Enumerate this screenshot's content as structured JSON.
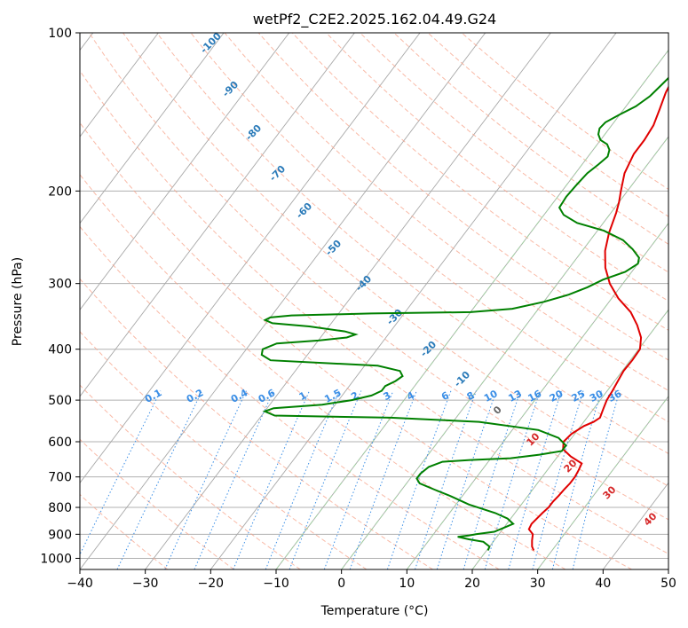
{
  "chart_data": {
    "type": "line",
    "title": "wetPf2_C2E2.2025.162.04.49.G24",
    "xlabel": "Temperature (°C)",
    "ylabel": "Pressure (hPa)",
    "xlim": [
      -40,
      50
    ],
    "ylim": [
      1050,
      100
    ],
    "y_scale": "log",
    "grid": true,
    "x_ticks": [
      -40,
      -30,
      -20,
      -10,
      0,
      10,
      20,
      30,
      40,
      50
    ],
    "y_ticks": [
      1000,
      900,
      800,
      700,
      600,
      500,
      400,
      300,
      200,
      100
    ],
    "colors": {
      "temperature": "#e00000",
      "dewpoint": "#008000",
      "isobar": "#b0b0b0",
      "isotherm": "#a8a8a8",
      "dry_adiabat": "#f7a38a",
      "moist_adiabat": "#9fd49f",
      "mixing_ratio": "#3a8ee6",
      "wetbulb_label": "#2b7bb9",
      "adiabat_label": "#d62728",
      "extra_curve": "#d8b88a"
    },
    "series": [
      {
        "name": "",
        "role": "temperature",
        "points": [
          [
            27.2,
            966
          ],
          [
            26.5,
            950
          ],
          [
            25.8,
            925
          ],
          [
            25.2,
            900
          ],
          [
            24.0,
            880
          ],
          [
            23.8,
            860
          ],
          [
            24.0,
            840
          ],
          [
            24.2,
            820
          ],
          [
            24.5,
            800
          ],
          [
            24.5,
            780
          ],
          [
            24.7,
            760
          ],
          [
            24.8,
            740
          ],
          [
            25.0,
            720
          ],
          [
            25.0,
            700
          ],
          [
            24.8,
            680
          ],
          [
            24.5,
            660
          ],
          [
            22.0,
            640
          ],
          [
            20.0,
            620
          ],
          [
            19.2,
            600
          ],
          [
            19.5,
            580
          ],
          [
            20.5,
            560
          ],
          [
            21.5,
            550
          ],
          [
            22.0,
            540
          ],
          [
            21.5,
            520
          ],
          [
            21.0,
            500
          ],
          [
            20.8,
            480
          ],
          [
            20.5,
            460
          ],
          [
            20.2,
            440
          ],
          [
            20.3,
            420
          ],
          [
            20.2,
            400
          ],
          [
            19.0,
            380
          ],
          [
            17.0,
            360
          ],
          [
            14.5,
            340
          ],
          [
            11.0,
            320
          ],
          [
            8.0,
            300
          ],
          [
            5.5,
            280
          ],
          [
            3.5,
            260
          ],
          [
            2.0,
            240
          ],
          [
            0.8,
            220
          ],
          [
            0.0,
            210
          ],
          [
            -1.0,
            200
          ],
          [
            -2.5,
            185
          ],
          [
            -3.3,
            170
          ],
          [
            -3.3,
            160
          ],
          [
            -3.6,
            150
          ],
          [
            -4.5,
            140
          ],
          [
            -5.5,
            130
          ],
          [
            -6.2,
            120
          ],
          [
            -6.8,
            110
          ],
          [
            -7.2,
            100
          ]
        ]
      },
      {
        "name": "",
        "role": "dewpoint",
        "points": [
          [
            20.2,
            966
          ],
          [
            20.0,
            950
          ],
          [
            18.5,
            930
          ],
          [
            16.0,
            920
          ],
          [
            14.0,
            910
          ],
          [
            15.5,
            905
          ],
          [
            16.5,
            900
          ],
          [
            19.0,
            890
          ],
          [
            20.0,
            875
          ],
          [
            21.0,
            860
          ],
          [
            19.5,
            840
          ],
          [
            17.0,
            820
          ],
          [
            12.0,
            790
          ],
          [
            8.0,
            760
          ],
          [
            5.0,
            740
          ],
          [
            2.0,
            720
          ],
          [
            1.0,
            705
          ],
          [
            1.0,
            690
          ],
          [
            1.5,
            670
          ],
          [
            3.0,
            655
          ],
          [
            7.0,
            650
          ],
          [
            13.0,
            645
          ],
          [
            17.0,
            635
          ],
          [
            20.0,
            625
          ],
          [
            20.0,
            610
          ],
          [
            18.0,
            590
          ],
          [
            14.0,
            570
          ],
          [
            4.0,
            550
          ],
          [
            -10.0,
            540
          ],
          [
            -28.0,
            535
          ],
          [
            -30.0,
            525
          ],
          [
            -29.0,
            518
          ],
          [
            -22.0,
            510
          ],
          [
            -18.0,
            500
          ],
          [
            -15.5,
            490
          ],
          [
            -14.5,
            480
          ],
          [
            -14.5,
            470
          ],
          [
            -13.5,
            460
          ],
          [
            -13.0,
            450
          ],
          [
            -14.0,
            440
          ],
          [
            -18.0,
            430
          ],
          [
            -35.0,
            420
          ],
          [
            -37.0,
            410
          ],
          [
            -37.5,
            400
          ],
          [
            -36.0,
            390
          ],
          [
            -30.0,
            385
          ],
          [
            -26.0,
            380
          ],
          [
            -25.0,
            375
          ],
          [
            -27.0,
            370
          ],
          [
            -33.0,
            362
          ],
          [
            -39.0,
            357
          ],
          [
            -40.5,
            352
          ],
          [
            -40.0,
            348
          ],
          [
            -37.0,
            345
          ],
          [
            -25.0,
            342
          ],
          [
            -10.0,
            340
          ],
          [
            -4.0,
            335
          ],
          [
            0.0,
            325
          ],
          [
            3.0,
            315
          ],
          [
            5.0,
            305
          ],
          [
            6.5,
            295
          ],
          [
            9.0,
            285
          ],
          [
            10.0,
            275
          ],
          [
            9.5,
            268
          ],
          [
            7.5,
            258
          ],
          [
            5.0,
            248
          ],
          [
            1.0,
            238
          ],
          [
            -4.0,
            230
          ],
          [
            -7.0,
            222
          ],
          [
            -8.5,
            215
          ],
          [
            -8.7,
            205
          ],
          [
            -8.5,
            195
          ],
          [
            -8.2,
            185
          ],
          [
            -7.5,
            178
          ],
          [
            -7.0,
            172
          ],
          [
            -7.5,
            167
          ],
          [
            -8.5,
            163
          ],
          [
            -10.0,
            160
          ],
          [
            -11.0,
            156
          ],
          [
            -11.5,
            152
          ],
          [
            -11.3,
            148
          ],
          [
            -10.0,
            143
          ],
          [
            -8.5,
            138
          ],
          [
            -7.5,
            132
          ],
          [
            -7.0,
            125
          ],
          [
            -6.5,
            118
          ],
          [
            -5.0,
            114
          ],
          [
            -3.5,
            110
          ],
          [
            -2.5,
            106
          ],
          [
            -2.0,
            103
          ],
          [
            -1.8,
            100
          ]
        ]
      }
    ],
    "dry_adiabat_theta_c": [
      -30,
      -20,
      -10,
      0,
      10,
      20,
      30,
      40,
      50,
      60,
      70,
      80,
      90,
      100,
      110,
      120,
      130,
      140,
      150,
      160,
      170
    ],
    "moist_adiabat_base_c": [
      -10,
      0,
      10,
      20,
      30
    ],
    "mixing_ratio_lines": [
      "0.1",
      "0.2",
      "0.4",
      "0.6",
      "1",
      "1.5",
      "2",
      "3",
      "4",
      "6",
      "8",
      "10",
      "13",
      "16",
      "20",
      "25",
      "30",
      "36"
    ],
    "wetbulb_labels": [
      "-100",
      "-90",
      "-80",
      "-70",
      "-60",
      "-50",
      "-40",
      "-30",
      "-20",
      "-10",
      "0"
    ],
    "adiabat_labels": [
      "10",
      "20",
      "30",
      "40"
    ]
  }
}
